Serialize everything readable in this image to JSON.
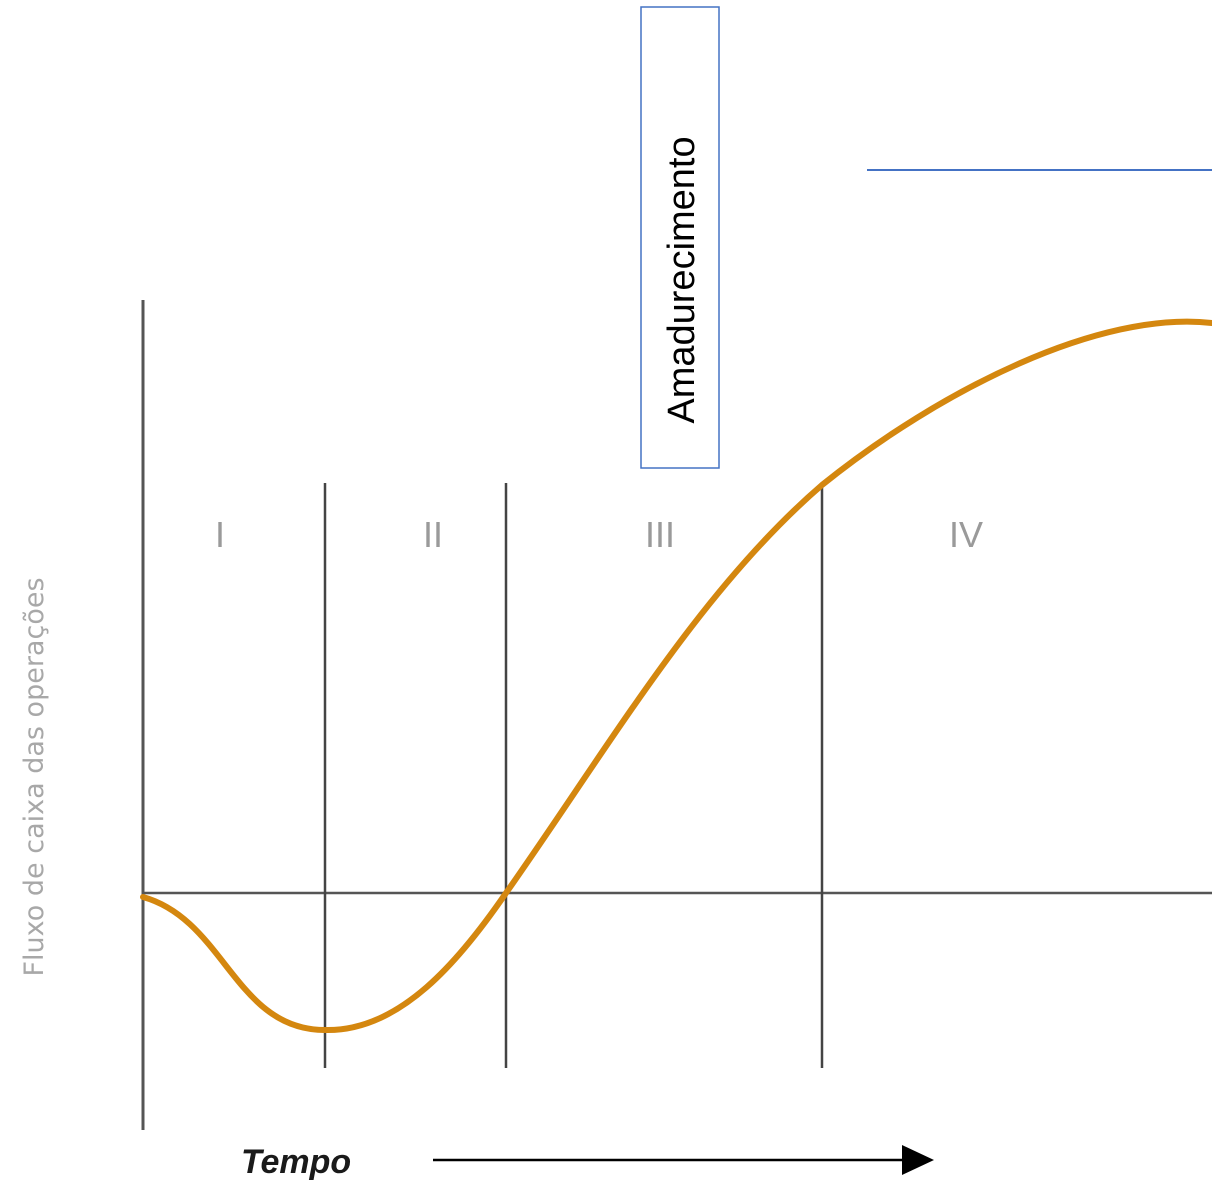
{
  "diagram": {
    "y_axis_label": "Fluxo de caixa das operações",
    "x_axis_label": "Tempo",
    "stages": [
      {
        "label": "I"
      },
      {
        "label": "II"
      },
      {
        "label": "III"
      },
      {
        "label": "IV"
      }
    ],
    "callout": {
      "text": "Amadurecimento",
      "border_color": "#4472c4"
    },
    "colors": {
      "curve": "#d4870f",
      "axes": "#555555",
      "callout_line": "#4472c4"
    }
  }
}
